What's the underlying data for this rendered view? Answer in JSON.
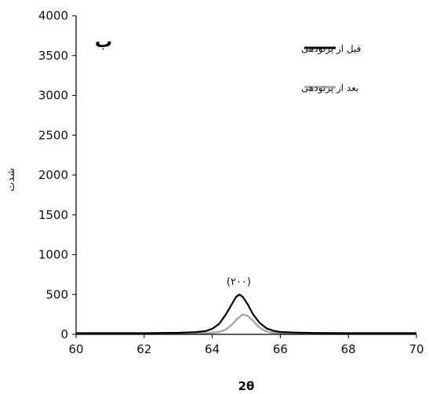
{
  "chart_data": {
    "type": "line",
    "panel_label": "ب",
    "xlabel": "2θ",
    "ylabel": "شدت",
    "xlim": [
      60,
      70
    ],
    "ylim": [
      0,
      4000
    ],
    "x_ticks": [
      60,
      62,
      64,
      66,
      68,
      70
    ],
    "y_ticks": [
      0,
      500,
      1000,
      1500,
      2000,
      2500,
      3000,
      3500,
      4000
    ],
    "grid": false,
    "legend_position": "top-right",
    "annotations": [
      {
        "text": "(۲۰۰)",
        "x": 64.78,
        "y": 620
      }
    ],
    "series": [
      {
        "name": "قبل از پرتودهی",
        "color": "#000000",
        "x": [
          60,
          61,
          62,
          62.5,
          63,
          63.5,
          63.8,
          64,
          64.2,
          64.4,
          64.55,
          64.7,
          64.8,
          64.9,
          65.05,
          65.2,
          65.4,
          65.6,
          65.8,
          66,
          66.5,
          67,
          68,
          69,
          70
        ],
        "y": [
          15,
          15,
          15,
          18,
          20,
          28,
          40,
          70,
          130,
          250,
          360,
          470,
          500,
          470,
          370,
          250,
          140,
          75,
          45,
          30,
          22,
          18,
          15,
          15,
          15
        ]
      },
      {
        "name": "بعد از پرتودهی",
        "color": "#a6a6a6",
        "x": [
          60,
          61,
          62,
          63,
          63.8,
          64.2,
          64.4,
          64.6,
          64.75,
          64.9,
          65.05,
          65.2,
          65.35,
          65.5,
          65.7,
          66,
          66.5,
          67,
          68,
          69,
          70
        ],
        "y": [
          8,
          8,
          8,
          10,
          15,
          30,
          60,
          130,
          200,
          250,
          230,
          170,
          100,
          55,
          25,
          12,
          10,
          8,
          8,
          8,
          8
        ]
      }
    ]
  }
}
